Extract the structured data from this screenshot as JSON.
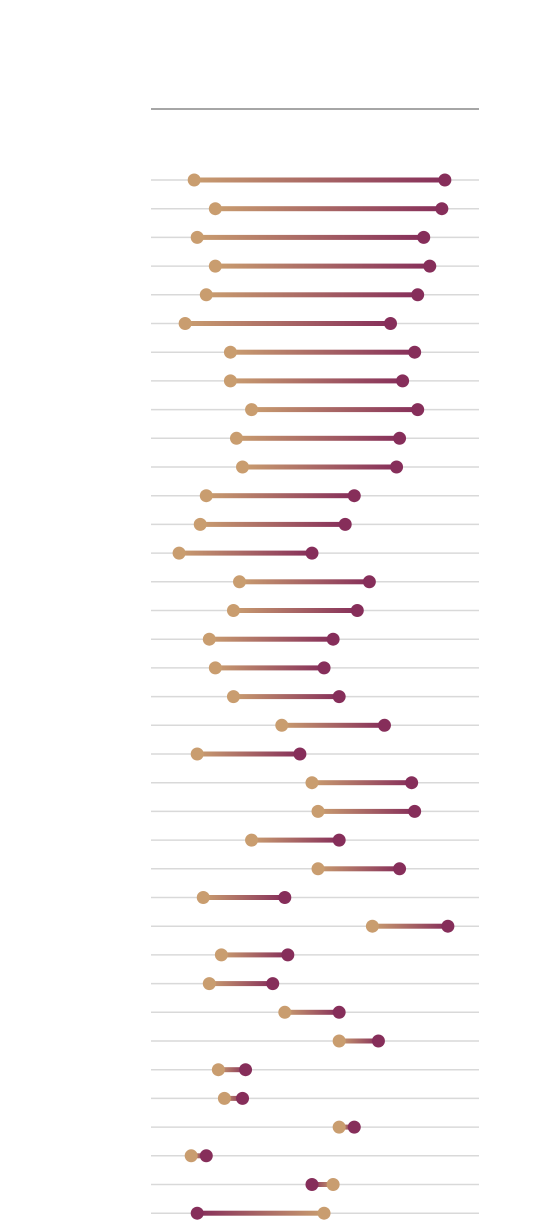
{
  "chart_data": {
    "type": "dumbbell",
    "title": "",
    "xlabel": "",
    "ylabel": "",
    "x_range": [
      0,
      100
    ],
    "grid": true,
    "legend": "none",
    "colors": {
      "start": "#c99d6f",
      "end": "#862e5a",
      "gridline": "#d9d9d9",
      "axis": "#a6a6a6"
    },
    "rows": [
      {
        "start": 10,
        "end": 93
      },
      {
        "start": 17,
        "end": 92
      },
      {
        "start": 11,
        "end": 86
      },
      {
        "start": 17,
        "end": 88
      },
      {
        "start": 14,
        "end": 84
      },
      {
        "start": 7,
        "end": 75
      },
      {
        "start": 22,
        "end": 83
      },
      {
        "start": 22,
        "end": 79
      },
      {
        "start": 29,
        "end": 84
      },
      {
        "start": 24,
        "end": 78
      },
      {
        "start": 26,
        "end": 77
      },
      {
        "start": 14,
        "end": 63
      },
      {
        "start": 12,
        "end": 60
      },
      {
        "start": 5,
        "end": 49
      },
      {
        "start": 25,
        "end": 68
      },
      {
        "start": 23,
        "end": 64
      },
      {
        "start": 15,
        "end": 56
      },
      {
        "start": 17,
        "end": 53
      },
      {
        "start": 23,
        "end": 58
      },
      {
        "start": 39,
        "end": 73
      },
      {
        "start": 11,
        "end": 45
      },
      {
        "start": 49,
        "end": 82
      },
      {
        "start": 51,
        "end": 83
      },
      {
        "start": 29,
        "end": 58
      },
      {
        "start": 51,
        "end": 78
      },
      {
        "start": 13,
        "end": 40
      },
      {
        "start": 69,
        "end": 94
      },
      {
        "start": 19,
        "end": 41
      },
      {
        "start": 15,
        "end": 36
      },
      {
        "start": 40,
        "end": 58
      },
      {
        "start": 58,
        "end": 71
      },
      {
        "start": 18,
        "end": 27
      },
      {
        "start": 20,
        "end": 26
      },
      {
        "start": 58,
        "end": 63
      },
      {
        "start": 9,
        "end": 14
      },
      {
        "start": 56,
        "end": 49
      },
      {
        "start": 53,
        "end": 11
      }
    ]
  }
}
